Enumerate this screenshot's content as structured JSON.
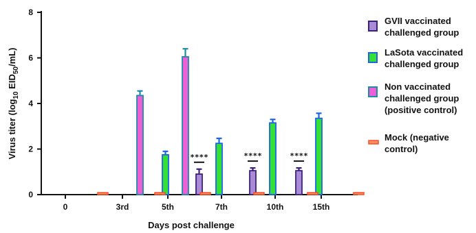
{
  "chart_data": {
    "type": "bar",
    "ylabel_main": "Virus titer (log",
    "ylabel_sub": "10",
    "ylabel_mid": " EID",
    "ylabel_sub2": "50",
    "ylabel_end": "/mL)",
    "xlabel": "Days post challenge",
    "ylim": [
      0,
      8
    ],
    "yticks": [
      "0",
      "2",
      "4",
      "6",
      "8"
    ],
    "categories": [
      "0",
      "3rd",
      "5th",
      "7th",
      "10th",
      "15th"
    ],
    "series": [
      {
        "name_lines": [
          "GVII vaccinated",
          "challenged group"
        ],
        "fill": "#a98ad6",
        "stroke": "#3a2178",
        "error": "#3a2178",
        "values": [
          0,
          0,
          0,
          0.9,
          1.05,
          1.05
        ],
        "errors": [
          0,
          0,
          0,
          0.22,
          0.12,
          0.12
        ]
      },
      {
        "name_lines": [
          "LaSota vaccinated",
          "challenged group"
        ],
        "fill": "#33e033",
        "stroke": "#1c63e6",
        "error": "#1c63e6",
        "values": [
          0,
          0,
          1.75,
          2.25,
          3.15,
          3.35
        ],
        "errors": [
          0,
          0,
          0.15,
          0.22,
          0.15,
          0.22
        ]
      },
      {
        "name_lines": [
          "Non vaccinated",
          "challenged group",
          "(positive control)"
        ],
        "fill": "#ec5fd5",
        "stroke": "#1d8aa8",
        "error": "#1d8aa8",
        "values": [
          0,
          4.35,
          6.05,
          0,
          0,
          0
        ],
        "errors": [
          0,
          0.2,
          0.35,
          0,
          0,
          0
        ]
      },
      {
        "name_lines": [
          "Mock (negative",
          "control)"
        ],
        "fill": "#ff8f5e",
        "stroke": "#f0502a",
        "error": "#f0502a",
        "values": [
          0.04,
          0.04,
          0.04,
          0.04,
          0.04,
          0.04
        ],
        "errors": [
          0,
          0,
          0,
          0,
          0,
          0
        ]
      }
    ],
    "annotations": [
      {
        "category": "7th",
        "text": "****"
      },
      {
        "category": "10th",
        "text": "****"
      },
      {
        "category": "15th",
        "text": "****"
      }
    ],
    "grid": false,
    "legend": "right"
  }
}
